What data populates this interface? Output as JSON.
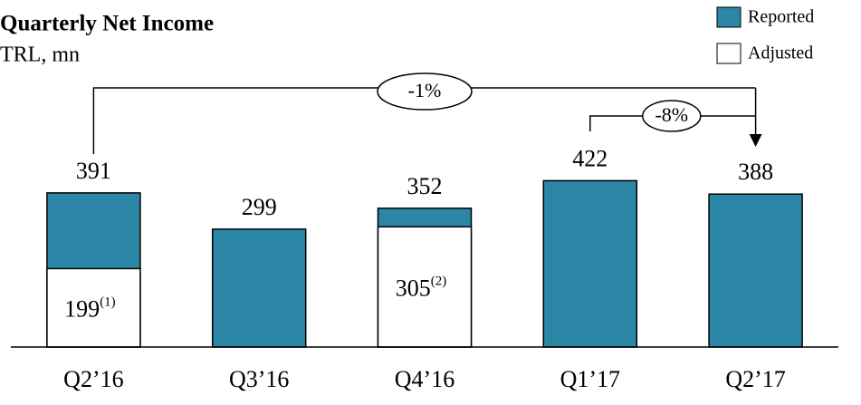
{
  "chart_data": {
    "type": "bar",
    "title": "Quarterly Net Income",
    "subtitle": "TRL, mn",
    "categories": [
      "Q2’16",
      "Q3’16",
      "Q4’16",
      "Q1’17",
      "Q2’17"
    ],
    "series": [
      {
        "name": "Reported",
        "color": "#2b87a5",
        "values": [
          391,
          299,
          352,
          422,
          388
        ]
      },
      {
        "name": "Adjusted",
        "color": "#ffffff",
        "values": [
          199,
          null,
          305,
          null,
          null
        ],
        "footnotes": [
          "(1)",
          null,
          "(2)",
          null,
          null
        ]
      }
    ],
    "ylim": [
      0,
      500
    ],
    "legend": "upper right",
    "annotations": [
      {
        "text": "-1%",
        "from": 0,
        "to": 4
      },
      {
        "text": "-8%",
        "from": 3,
        "to": 4
      }
    ]
  }
}
